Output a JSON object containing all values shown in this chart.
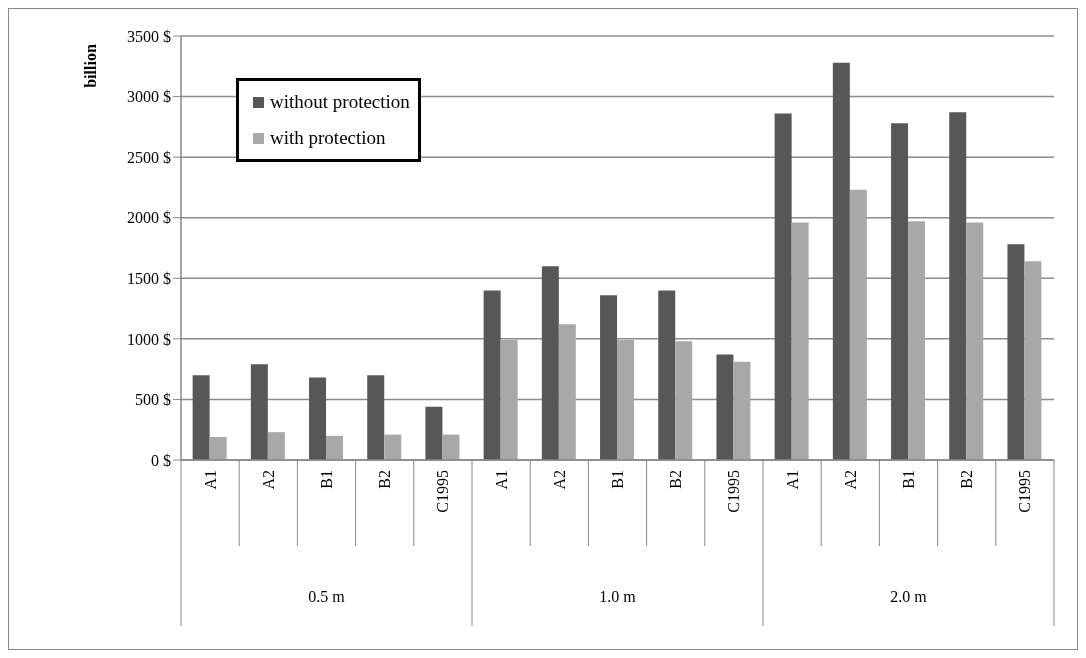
{
  "chart_data": {
    "type": "bar",
    "ylabel": "billion",
    "categories": [
      "A1",
      "A2",
      "B1",
      "B2",
      "C1995",
      "A1",
      "A2",
      "B1",
      "B2",
      "C1995",
      "A1",
      "A2",
      "B1",
      "B2",
      "C1995"
    ],
    "annotations": [
      "0.5 m",
      "1.0 m",
      "2.0 m"
    ],
    "series": [
      {
        "name": "without protection",
        "color": "#575757",
        "values": [
          700,
          790,
          680,
          700,
          440,
          1400,
          1600,
          1360,
          1400,
          870,
          2860,
          3280,
          2780,
          2870,
          1780
        ]
      },
      {
        "name": "with protection",
        "color": "#a8a8a8",
        "values": [
          190,
          230,
          200,
          210,
          210,
          990,
          1120,
          990,
          980,
          810,
          1960,
          2230,
          1970,
          1960,
          1640
        ]
      }
    ],
    "ylim": [
      0,
      3500
    ],
    "yticks": [
      {
        "value": 0,
        "label": "0 $"
      },
      {
        "value": 500,
        "label": "500 $"
      },
      {
        "value": 1000,
        "label": "1000 $"
      },
      {
        "value": 1500,
        "label": "1500 $"
      },
      {
        "value": 2000,
        "label": "2000 $"
      },
      {
        "value": 2500,
        "label": "2500 $"
      },
      {
        "value": 3000,
        "label": "3000 $"
      },
      {
        "value": 3500,
        "label": "3500 $"
      }
    ],
    "grid": "y",
    "legend": "top left"
  }
}
